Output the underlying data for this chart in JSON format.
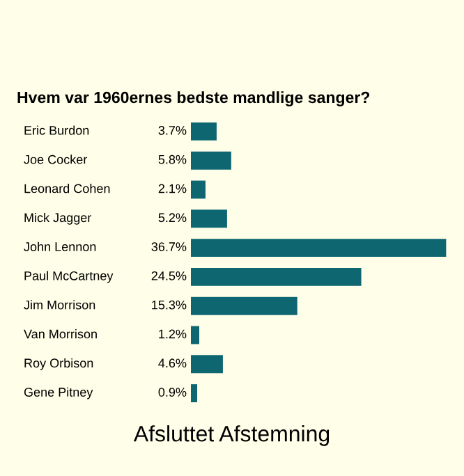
{
  "chart_data": {
    "type": "bar",
    "orientation": "horizontal",
    "title": "Hvem var 1960ernes bedste mandlige sanger?",
    "categories": [
      "Eric Burdon",
      "Joe Cocker",
      "Leonard Cohen",
      "Mick Jagger",
      "John Lennon",
      "Paul McCartney",
      "Jim Morrison",
      "Van Morrison",
      "Roy Orbison",
      "Gene Pitney"
    ],
    "values": [
      3.7,
      5.8,
      2.1,
      5.2,
      36.7,
      24.5,
      15.3,
      1.2,
      4.6,
      0.9
    ],
    "color": "#0e6670",
    "value_labels": [
      "3.7%",
      "5.8%",
      "2.1%",
      "5.2%",
      "36.7%",
      "24.5%",
      "15.3%",
      "1.2%",
      "4.6%",
      "0.9%"
    ],
    "annotations": [
      "Afsluttet Afstemning"
    ]
  }
}
